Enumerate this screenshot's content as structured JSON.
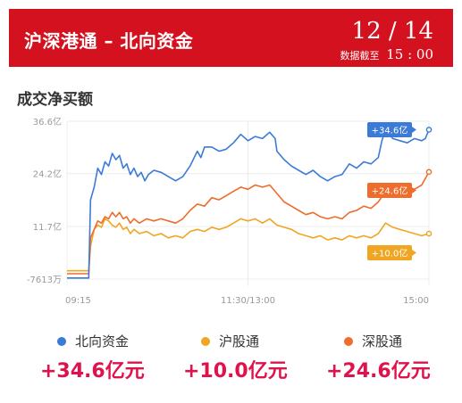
{
  "header": {
    "title": "沪深港通 – 北向资金",
    "date": "12 / 14",
    "cutoff_label": "数据截至",
    "cutoff_time": "15 : 00"
  },
  "section_title": "成交净买额",
  "colors": {
    "north": "#3b7bd6",
    "sh": "#f0a623",
    "sz": "#ee6c2c",
    "header_bg": "#d4121f",
    "total_text": "#e0124b"
  },
  "chart_data": {
    "type": "line",
    "x_ticks": [
      "09:15",
      "11:30/13:00",
      "15:00"
    ],
    "y_ticks": [
      "36.6亿",
      "24.2亿",
      "11.7亿",
      "-7613万"
    ],
    "ylim": [
      -0.7613,
      36.6
    ],
    "series": [
      {
        "name": "北向资金",
        "color_key": "north",
        "end_label": "+34.6亿",
        "points": [
          [
            0.0,
            -0.5
          ],
          [
            0.06,
            -0.5
          ],
          [
            0.065,
            18.0
          ],
          [
            0.075,
            21.0
          ],
          [
            0.085,
            25.5
          ],
          [
            0.095,
            24.0
          ],
          [
            0.105,
            27.0
          ],
          [
            0.115,
            26.0
          ],
          [
            0.125,
            29.0
          ],
          [
            0.135,
            27.5
          ],
          [
            0.145,
            28.5
          ],
          [
            0.155,
            25.5
          ],
          [
            0.165,
            26.5
          ],
          [
            0.175,
            24.0
          ],
          [
            0.185,
            25.5
          ],
          [
            0.195,
            23.5
          ],
          [
            0.205,
            24.5
          ],
          [
            0.215,
            22.5
          ],
          [
            0.225,
            24.0
          ],
          [
            0.24,
            25.0
          ],
          [
            0.26,
            24.5
          ],
          [
            0.28,
            23.5
          ],
          [
            0.3,
            22.5
          ],
          [
            0.32,
            23.5
          ],
          [
            0.34,
            26.0
          ],
          [
            0.36,
            29.5
          ],
          [
            0.37,
            28.0
          ],
          [
            0.38,
            30.5
          ],
          [
            0.4,
            30.5
          ],
          [
            0.42,
            29.5
          ],
          [
            0.44,
            30.0
          ],
          [
            0.46,
            31.5
          ],
          [
            0.48,
            33.5
          ],
          [
            0.5,
            32.0
          ],
          [
            0.52,
            33.0
          ],
          [
            0.54,
            32.5
          ],
          [
            0.56,
            34.0
          ],
          [
            0.575,
            32.5
          ],
          [
            0.58,
            29.5
          ],
          [
            0.6,
            27.5
          ],
          [
            0.62,
            26.0
          ],
          [
            0.64,
            25.0
          ],
          [
            0.66,
            24.0
          ],
          [
            0.68,
            25.0
          ],
          [
            0.7,
            23.5
          ],
          [
            0.72,
            22.5
          ],
          [
            0.74,
            23.5
          ],
          [
            0.76,
            24.0
          ],
          [
            0.78,
            26.5
          ],
          [
            0.8,
            25.5
          ],
          [
            0.82,
            27.0
          ],
          [
            0.84,
            26.5
          ],
          [
            0.86,
            28.0
          ],
          [
            0.87,
            32.0
          ],
          [
            0.88,
            34.5
          ],
          [
            0.9,
            32.5
          ],
          [
            0.92,
            32.0
          ],
          [
            0.94,
            31.5
          ],
          [
            0.96,
            32.5
          ],
          [
            0.98,
            32.0
          ],
          [
            0.99,
            32.5
          ],
          [
            1.0,
            34.6
          ]
        ]
      },
      {
        "name": "沪股通",
        "color_key": "sh",
        "end_label": "+10.0亿",
        "points": [
          [
            0.0,
            1.2
          ],
          [
            0.06,
            1.2
          ],
          [
            0.065,
            7.0
          ],
          [
            0.075,
            11.0
          ],
          [
            0.085,
            12.0
          ],
          [
            0.095,
            11.5
          ],
          [
            0.105,
            13.5
          ],
          [
            0.115,
            13.0
          ],
          [
            0.125,
            12.0
          ],
          [
            0.135,
            11.5
          ],
          [
            0.145,
            12.5
          ],
          [
            0.155,
            11.0
          ],
          [
            0.165,
            11.5
          ],
          [
            0.175,
            10.0
          ],
          [
            0.185,
            11.0
          ],
          [
            0.2,
            10.0
          ],
          [
            0.22,
            10.5
          ],
          [
            0.24,
            9.5
          ],
          [
            0.26,
            10.0
          ],
          [
            0.28,
            9.0
          ],
          [
            0.3,
            9.5
          ],
          [
            0.32,
            9.0
          ],
          [
            0.34,
            10.5
          ],
          [
            0.36,
            11.0
          ],
          [
            0.38,
            10.5
          ],
          [
            0.4,
            11.5
          ],
          [
            0.42,
            11.0
          ],
          [
            0.44,
            11.5
          ],
          [
            0.46,
            12.5
          ],
          [
            0.48,
            13.5
          ],
          [
            0.5,
            13.0
          ],
          [
            0.52,
            13.5
          ],
          [
            0.54,
            12.5
          ],
          [
            0.56,
            13.5
          ],
          [
            0.58,
            12.0
          ],
          [
            0.6,
            11.5
          ],
          [
            0.62,
            11.0
          ],
          [
            0.64,
            10.0
          ],
          [
            0.66,
            9.5
          ],
          [
            0.68,
            9.0
          ],
          [
            0.7,
            9.5
          ],
          [
            0.72,
            8.5
          ],
          [
            0.74,
            9.0
          ],
          [
            0.76,
            8.5
          ],
          [
            0.78,
            9.5
          ],
          [
            0.8,
            9.0
          ],
          [
            0.82,
            9.5
          ],
          [
            0.84,
            9.0
          ],
          [
            0.86,
            10.0
          ],
          [
            0.88,
            12.5
          ],
          [
            0.9,
            11.5
          ],
          [
            0.92,
            11.0
          ],
          [
            0.94,
            10.5
          ],
          [
            0.96,
            10.0
          ],
          [
            0.98,
            9.5
          ],
          [
            1.0,
            10.0
          ]
        ]
      },
      {
        "name": "深股通",
        "color_key": "sz",
        "end_label": "+24.6亿",
        "points": [
          [
            0.0,
            0.5
          ],
          [
            0.06,
            0.5
          ],
          [
            0.065,
            9.0
          ],
          [
            0.075,
            11.0
          ],
          [
            0.085,
            13.0
          ],
          [
            0.095,
            12.5
          ],
          [
            0.105,
            14.0
          ],
          [
            0.115,
            13.5
          ],
          [
            0.125,
            15.0
          ],
          [
            0.135,
            14.0
          ],
          [
            0.145,
            15.0
          ],
          [
            0.155,
            13.5
          ],
          [
            0.165,
            14.0
          ],
          [
            0.175,
            12.5
          ],
          [
            0.185,
            13.5
          ],
          [
            0.2,
            12.5
          ],
          [
            0.22,
            13.5
          ],
          [
            0.24,
            13.0
          ],
          [
            0.26,
            13.5
          ],
          [
            0.28,
            13.0
          ],
          [
            0.3,
            12.5
          ],
          [
            0.32,
            13.5
          ],
          [
            0.34,
            15.5
          ],
          [
            0.36,
            17.0
          ],
          [
            0.38,
            16.5
          ],
          [
            0.4,
            18.5
          ],
          [
            0.42,
            18.0
          ],
          [
            0.44,
            19.0
          ],
          [
            0.46,
            20.0
          ],
          [
            0.48,
            21.0
          ],
          [
            0.5,
            20.5
          ],
          [
            0.52,
            21.5
          ],
          [
            0.54,
            21.0
          ],
          [
            0.56,
            21.5
          ],
          [
            0.58,
            19.5
          ],
          [
            0.6,
            17.5
          ],
          [
            0.62,
            16.5
          ],
          [
            0.64,
            15.5
          ],
          [
            0.66,
            14.5
          ],
          [
            0.68,
            15.0
          ],
          [
            0.7,
            14.0
          ],
          [
            0.72,
            13.5
          ],
          [
            0.74,
            14.0
          ],
          [
            0.76,
            13.5
          ],
          [
            0.78,
            15.0
          ],
          [
            0.8,
            15.5
          ],
          [
            0.82,
            16.5
          ],
          [
            0.84,
            16.0
          ],
          [
            0.86,
            17.5
          ],
          [
            0.88,
            20.0
          ],
          [
            0.9,
            21.5
          ],
          [
            0.92,
            20.5
          ],
          [
            0.94,
            21.0
          ],
          [
            0.96,
            20.5
          ],
          [
            0.98,
            21.5
          ],
          [
            1.0,
            24.6
          ]
        ]
      }
    ]
  },
  "legend": [
    {
      "label": "北向资金",
      "color_key": "north",
      "total": "+34.6亿元"
    },
    {
      "label": "沪股通",
      "color_key": "sh",
      "total": "+10.0亿元"
    },
    {
      "label": "深股通",
      "color_key": "sz",
      "total": "+24.6亿元"
    }
  ]
}
